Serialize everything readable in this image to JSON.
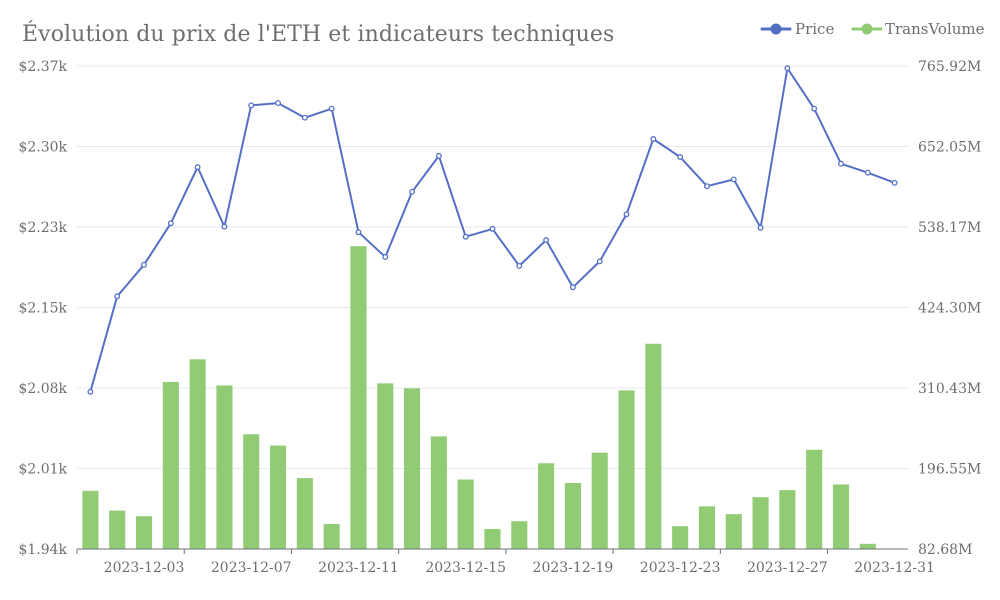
{
  "chart_data": {
    "type": "bar+line",
    "title": "Évolution du prix de l'ETH et indicateurs techniques",
    "x": [
      "2023-12-01",
      "2023-12-02",
      "2023-12-03",
      "2023-12-04",
      "2023-12-05",
      "2023-12-06",
      "2023-12-07",
      "2023-12-08",
      "2023-12-09",
      "2023-12-10",
      "2023-12-11",
      "2023-12-12",
      "2023-12-13",
      "2023-12-14",
      "2023-12-15",
      "2023-12-16",
      "2023-12-17",
      "2023-12-18",
      "2023-12-19",
      "2023-12-20",
      "2023-12-21",
      "2023-12-22",
      "2023-12-23",
      "2023-12-24",
      "2023-12-25",
      "2023-12-26",
      "2023-12-27",
      "2023-12-28",
      "2023-12-29",
      "2023-12-30",
      "2023-12-31"
    ],
    "x_tick_labels": [
      "2023-12-03",
      "2023-12-07",
      "2023-12-11",
      "2023-12-15",
      "2023-12-19",
      "2023-12-23",
      "2023-12-27",
      "2023-12-31"
    ],
    "series": [
      {
        "name": "Price",
        "axis": "left",
        "type": "line",
        "color": "#5470c6",
        "values": [
          2080,
          2165,
          2193,
          2230,
          2280,
          2227,
          2335,
          2337,
          2324,
          2332,
          2222,
          2200,
          2258,
          2290,
          2218,
          2225,
          2192,
          2215,
          2173,
          2196,
          2238,
          2305,
          2289,
          2263,
          2269,
          2226,
          2368,
          2332,
          2283,
          2275,
          2266
        ]
      },
      {
        "name": "TransVolume",
        "axis": "right",
        "type": "bar",
        "color": "#91cc75",
        "values": [
          165,
          137,
          129,
          319,
          351,
          314,
          245,
          229,
          183,
          118,
          511,
          317,
          310,
          242,
          181,
          111,
          122,
          204,
          176,
          219,
          307,
          373,
          115,
          143,
          132,
          156,
          166,
          223,
          174,
          90,
          80
        ]
      }
    ],
    "y_left": {
      "min": 1940,
      "max": 2370,
      "ticks": [
        "$1.94k",
        "$2.01k",
        "$2.08k",
        "$2.15k",
        "$2.23k",
        "$2.30k",
        "$2.37k"
      ]
    },
    "y_right": {
      "min": 82.68,
      "max": 765.92,
      "ticks": [
        "82.68M",
        "196.55M",
        "310.43M",
        "424.30M",
        "538.17M",
        "652.05M",
        "765.92M"
      ]
    },
    "legend": {
      "position": "top-right",
      "items": [
        "Price",
        "TransVolume"
      ]
    },
    "grid": true
  }
}
